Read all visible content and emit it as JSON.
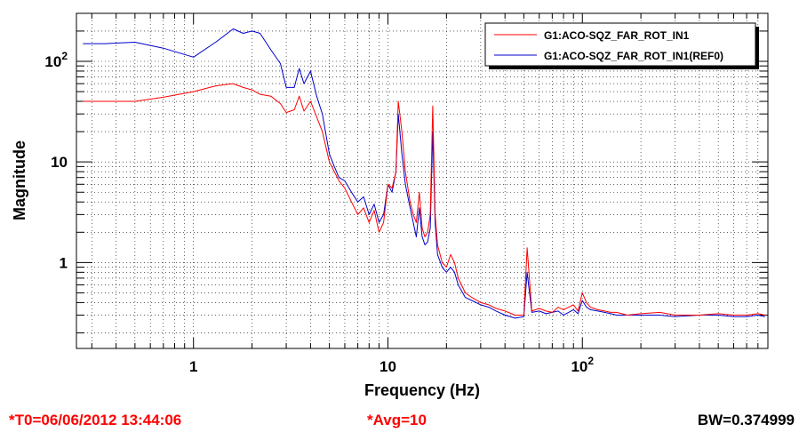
{
  "chart_data": {
    "type": "line",
    "xlabel": "Frequency (Hz)",
    "ylabel": "Magnitude",
    "xscale": "log",
    "yscale": "log",
    "xlim": [
      0.25,
      900
    ],
    "ylim": [
      0.14,
      300
    ],
    "grid": true,
    "legend_position": "top-right",
    "x_ticks": [
      {
        "value": 1,
        "label": "1"
      },
      {
        "value": 10,
        "label": "10"
      },
      {
        "value": 100,
        "label": "10",
        "exp": "2"
      }
    ],
    "y_ticks": [
      {
        "value": 1,
        "label": "1"
      },
      {
        "value": 10,
        "label": "10"
      },
      {
        "value": 100,
        "label": "10",
        "exp": "2"
      }
    ],
    "series": [
      {
        "name": "G1:ACO-SQZ_FAR_ROT_IN1",
        "color": "#ff0000",
        "x": [
          0.27,
          0.35,
          0.5,
          0.7,
          1,
          1.3,
          1.6,
          1.8,
          2,
          2.2,
          2.5,
          2.8,
          3,
          3.3,
          3.5,
          3.7,
          4,
          4.3,
          4.6,
          5,
          5.3,
          5.6,
          6,
          6.5,
          7,
          7.5,
          8,
          8.5,
          9,
          9.5,
          10,
          10.5,
          11,
          11.3,
          11.8,
          12.3,
          13,
          13.5,
          14,
          14.5,
          15,
          15.5,
          16,
          16.5,
          17,
          17.5,
          18,
          19,
          20,
          21,
          22,
          23,
          25,
          27,
          30,
          33,
          36,
          40,
          45,
          50,
          52,
          55,
          60,
          65,
          70,
          75,
          80,
          85,
          90,
          95,
          100,
          105,
          110,
          120,
          130,
          140,
          150,
          170,
          200,
          250,
          300,
          400,
          500,
          600,
          700,
          800,
          870
        ],
        "y": [
          40,
          40,
          40,
          44,
          50,
          57,
          60,
          55,
          52,
          47,
          45,
          38,
          31,
          33,
          45,
          32,
          40,
          28,
          20,
          10,
          8,
          6.5,
          5.5,
          4,
          3,
          3.5,
          2.5,
          3.3,
          2,
          2.5,
          6,
          5.5,
          8,
          40,
          20,
          8,
          4,
          3,
          2.5,
          5,
          2.2,
          1.8,
          2,
          3,
          36,
          3,
          1.5,
          1,
          0.9,
          1.2,
          1,
          0.7,
          0.5,
          0.45,
          0.4,
          0.38,
          0.35,
          0.33,
          0.3,
          0.3,
          1.4,
          0.33,
          0.35,
          0.33,
          0.32,
          0.36,
          0.34,
          0.36,
          0.38,
          0.33,
          0.5,
          0.4,
          0.36,
          0.34,
          0.33,
          0.32,
          0.32,
          0.3,
          0.31,
          0.32,
          0.3,
          0.3,
          0.31,
          0.3,
          0.3,
          0.31,
          0.3
        ]
      },
      {
        "name": "G1:ACO-SQZ_FAR_ROT_IN1(REF0)",
        "color": "#0000cc",
        "x": [
          0.27,
          0.35,
          0.5,
          0.7,
          1,
          1.3,
          1.6,
          1.8,
          2,
          2.2,
          2.5,
          2.8,
          3,
          3.3,
          3.5,
          3.7,
          4,
          4.3,
          4.6,
          5,
          5.3,
          5.6,
          6,
          6.5,
          7,
          7.5,
          8,
          8.5,
          9,
          9.5,
          10,
          10.5,
          11,
          11.3,
          11.8,
          12.3,
          13,
          13.5,
          14,
          14.5,
          15,
          15.5,
          16,
          16.5,
          17,
          17.5,
          18,
          19,
          20,
          21,
          22,
          23,
          25,
          27,
          30,
          33,
          36,
          40,
          45,
          50,
          52,
          55,
          60,
          65,
          70,
          75,
          80,
          85,
          90,
          95,
          100,
          105,
          110,
          120,
          130,
          140,
          150,
          170,
          200,
          250,
          300,
          400,
          500,
          600,
          700,
          800,
          870
        ],
        "y": [
          150,
          150,
          155,
          135,
          110,
          155,
          210,
          190,
          200,
          190,
          130,
          95,
          55,
          55,
          85,
          60,
          80,
          45,
          30,
          12,
          9,
          7,
          6.5,
          5,
          4,
          4.5,
          3,
          3.8,
          2.5,
          3,
          6,
          5,
          8,
          30,
          12,
          6,
          3.5,
          2.5,
          1.8,
          3.5,
          1.8,
          1.5,
          1.6,
          2.2,
          20,
          2.5,
          1.2,
          0.9,
          0.8,
          0.9,
          0.8,
          0.6,
          0.45,
          0.42,
          0.38,
          0.36,
          0.33,
          0.3,
          0.28,
          0.29,
          0.8,
          0.32,
          0.33,
          0.31,
          0.32,
          0.33,
          0.3,
          0.32,
          0.34,
          0.31,
          0.42,
          0.36,
          0.34,
          0.33,
          0.32,
          0.31,
          0.3,
          0.3,
          0.3,
          0.3,
          0.29,
          0.3,
          0.3,
          0.29,
          0.29,
          0.3,
          0.29
        ]
      }
    ]
  },
  "footer": {
    "t0": "*T0=06/06/2012 13:44:06",
    "avg": "*Avg=10",
    "bw": "BW=0.374999"
  }
}
